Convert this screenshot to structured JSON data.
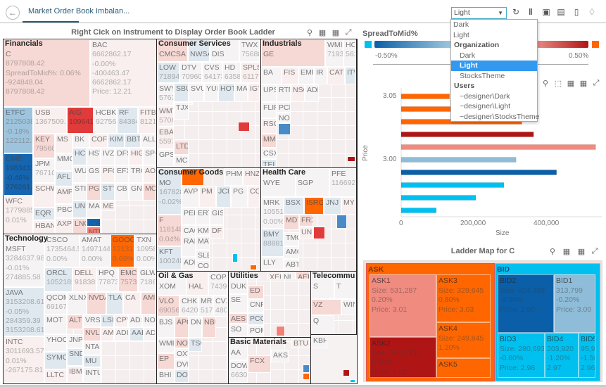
{
  "header": {
    "title": "Market Order Book Imbalan...",
    "theme_value": "Light"
  },
  "theme_menu": {
    "items": [
      {
        "label": "Dark",
        "type": "item"
      },
      {
        "label": "Light",
        "type": "item"
      },
      {
        "label": "Organization",
        "type": "group"
      },
      {
        "label": "Dark",
        "type": "sub"
      },
      {
        "label": "Light",
        "type": "sub",
        "selected": true
      },
      {
        "label": "StocksTheme",
        "type": "sub"
      },
      {
        "label": "Users",
        "type": "group"
      },
      {
        "label": "~designer\\Dark",
        "type": "sub"
      },
      {
        "label": "~designer\\Light",
        "type": "sub"
      },
      {
        "label": "~designer\\StocksTheme",
        "type": "sub"
      }
    ]
  },
  "icons": {
    "header": [
      "refresh-icon",
      "pause-icon",
      "snapshot-icon",
      "pdf-icon",
      "bookmark-icon",
      "bell-icon"
    ]
  },
  "treemap": {
    "title": "Right Cick on Instrument to Display Order Book Ladder",
    "sectors": [
      "Financials",
      "Consumer Services",
      "Industrials",
      "Consumer Goods",
      "Health Care",
      "Technology",
      "Oil & Gas",
      "Utilities",
      "Basic Materials",
      "Telecommuni"
    ],
    "cells": [
      [
        "C",
        "8797808.42",
        "SpreadToMid%: 0.06%",
        "-924848.04",
        "8797808.42"
      ],
      [
        "BAC",
        "6662862.17",
        "-0.00%",
        "-400463.47",
        "6662862.17",
        "Price: 12.21"
      ],
      [
        "ETFC",
        "2125038.",
        "-0.18%",
        "122112.8"
      ],
      [
        "CME",
        "1983431.",
        "-0.46%",
        "276261.0"
      ],
      [
        "WFC",
        "1779885.",
        "0.01%"
      ],
      [
        "USB",
        "1367509.4"
      ],
      [
        "AIG",
        "1096417"
      ],
      [
        "HCBK",
        "927560"
      ],
      [
        "RF",
        "84384"
      ],
      [
        "FITB",
        "81210"
      ],
      [
        "KEY",
        "79560"
      ],
      [
        "JPM",
        "76710"
      ],
      [
        "SCHW"
      ],
      [
        "EQR"
      ],
      [
        "HBAN"
      ],
      [
        "MS"
      ],
      [
        "MMC"
      ],
      [
        "AFL"
      ],
      [
        "AMP"
      ],
      [
        "PBCT"
      ],
      [
        "AXP"
      ],
      [
        "BK"
      ],
      [
        "COF"
      ],
      [
        "KIM"
      ],
      [
        "BBT"
      ],
      [
        "ALL"
      ],
      [
        "HCP"
      ],
      [
        "HST"
      ],
      [
        "IVZ"
      ],
      [
        "DFS"
      ],
      [
        "HIG"
      ],
      [
        "SPG"
      ],
      [
        "WU"
      ],
      [
        "GS"
      ],
      [
        "PFG"
      ],
      [
        "EFX"
      ],
      [
        "TRC"
      ],
      [
        "AO"
      ],
      [
        "STI"
      ],
      [
        "PGR"
      ],
      [
        "STT"
      ],
      [
        "CB"
      ],
      [
        "GN"
      ],
      [
        "MC"
      ],
      [
        "UNM"
      ],
      [
        "MA"
      ],
      [
        "ME"
      ],
      [
        "LNC"
      ],
      [
        "ICE"
      ],
      [
        "NTR"
      ],
      [
        "CMCSA"
      ],
      [
        "NWSA"
      ],
      [
        "DIS"
      ],
      [
        "TWX",
        "75688"
      ],
      [
        "LOW",
        "71894"
      ],
      [
        "DTV",
        "70960"
      ],
      [
        "CVS",
        "64173"
      ],
      [
        "HD",
        "63589"
      ],
      [
        "SPLS",
        "61170"
      ],
      [
        "SWY",
        "5763"
      ],
      [
        "SBU"
      ],
      [
        "SVU"
      ],
      [
        "YUM"
      ],
      [
        "HOT"
      ],
      [
        "MAR"
      ],
      [
        "IGT"
      ],
      [
        "WMT",
        "5706"
      ],
      [
        "TJX"
      ],
      [
        "LUV"
      ],
      [
        "EBAY",
        "5597"
      ],
      [
        "LTD"
      ],
      [
        "GPS"
      ],
      [
        "MCD"
      ],
      [
        ""
      ],
      [
        "GE"
      ],
      [
        "WMI",
        "7193"
      ],
      [
        "HON",
        "562"
      ],
      [
        "BA"
      ],
      [
        "FIS"
      ],
      [
        "EMR"
      ],
      [
        "IR"
      ],
      [
        "CAT"
      ],
      [
        "ITW"
      ],
      [
        "UPS"
      ],
      [
        "RTN"
      ],
      [
        "NSC"
      ],
      [
        "ADP"
      ],
      [
        "FLIR"
      ],
      [
        "PCF"
      ],
      [
        "RSG"
      ],
      [
        "NO"
      ],
      [
        ""
      ],
      [
        "MMI"
      ],
      [
        "CSX"
      ],
      [
        "TEL"
      ],
      [
        ""
      ],
      [
        "MO",
        "167828",
        "-0.02%"
      ],
      [
        ""
      ],
      [
        "PHM"
      ],
      [
        "HNZ"
      ],
      [
        "AVP"
      ],
      [
        "PM"
      ],
      [
        "JCI"
      ],
      [
        "PG"
      ],
      [
        "CCE"
      ],
      [
        "PEP"
      ],
      [
        "ERT"
      ],
      [
        "GIS"
      ],
      [
        "F",
        "118148",
        "0.04%"
      ],
      [
        "CAG"
      ],
      [
        "KMI"
      ],
      [
        "DF"
      ],
      [
        "KFT",
        "100248"
      ],
      [
        "RAI"
      ],
      [
        "MAT"
      ],
      [
        "SLE"
      ],
      [
        "ADM"
      ],
      [
        "COH"
      ],
      [
        ""
      ],
      [
        ""
      ],
      [
        "WYE"
      ],
      [
        "SGP"
      ],
      [
        "PFE",
        "116692"
      ],
      [
        "MRK",
        "10551",
        "0.00%"
      ],
      [
        "BSX"
      ],
      [
        "ISRG"
      ],
      [
        "JNJ"
      ],
      [
        "MYL"
      ],
      [
        "MDT"
      ],
      [
        "FRX"
      ],
      [
        "UNI"
      ],
      [
        ""
      ],
      [
        ""
      ],
      [
        "BMY",
        "88881"
      ],
      [
        "TMO"
      ],
      [
        "AMG"
      ],
      [
        "LLY"
      ],
      [
        "ABT"
      ],
      [
        "MSFT",
        "3284637.98",
        "-0.01%",
        "274885.58"
      ],
      [
        "JAVA",
        "3153208.61",
        "-0.05%",
        "284359.39",
        "3153208.61"
      ],
      [
        "INTC",
        "3011693.57",
        "0.01%",
        "-267175.81"
      ],
      [
        "CSCO",
        "1735464.5",
        "0.00%"
      ],
      [
        "AMAT",
        "1497144.",
        "0.00%"
      ],
      [
        "GOOG",
        "121314",
        "0.69%"
      ],
      [
        "TXN",
        "10958",
        "0.00%"
      ],
      [
        "ORCL",
        "1052185"
      ],
      [
        "DELL",
        "918389"
      ],
      [
        "HPQ",
        "77873"
      ],
      [
        "EMC",
        "75732"
      ],
      [
        "GLW",
        "71861"
      ],
      [
        "QCOM",
        "69167"
      ],
      [
        "XLNX"
      ],
      [
        "NVDA"
      ],
      [
        "TLAB"
      ],
      [
        "CA"
      ],
      [
        "AMD"
      ],
      [
        "MOT"
      ],
      [
        "ALTR"
      ],
      [
        "VRSN"
      ],
      [
        "LSI"
      ],
      [
        "CPW"
      ],
      [
        "ADS"
      ],
      [
        "NOV"
      ],
      [
        "YHOO"
      ],
      [
        "JNPR"
      ],
      [
        "NVLS"
      ],
      [
        "AMT"
      ],
      [
        "ADI"
      ],
      [
        "AAP"
      ],
      [
        "ADB"
      ],
      [
        "SYMC"
      ],
      [
        "SND"
      ],
      [
        "NTAP"
      ],
      [
        "MU"
      ],
      [
        "INTU"
      ],
      [
        "LLTC"
      ],
      [
        "IBM"
      ],
      [
        "XOM"
      ],
      [
        "HAL"
      ],
      [
        "COP",
        "74391"
      ],
      [
        "VLO",
        "69056"
      ],
      [
        "CHK",
        "64205"
      ],
      [
        "MRO",
        "5176"
      ],
      [
        "CVX",
        "4806"
      ],
      [
        "BJS"
      ],
      [
        "APC"
      ],
      [
        "DNR"
      ],
      [
        "NBL"
      ],
      [
        "WMB"
      ],
      [
        "NOV"
      ],
      [
        "TSC"
      ],
      [
        "EP"
      ],
      [
        "OXY"
      ],
      [
        "DVN"
      ],
      [
        "BHI"
      ],
      [
        "DO"
      ],
      [
        "DUK"
      ],
      [
        "XEL"
      ],
      [
        "NI"
      ],
      [
        "AEP"
      ],
      [
        "ED"
      ],
      [
        "SE"
      ],
      [
        "CNP"
      ],
      [
        "AES"
      ],
      [
        "PCG"
      ],
      [
        "SO"
      ],
      [
        "POM"
      ],
      [
        ""
      ],
      [
        "AA"
      ],
      [
        "BTU"
      ],
      [
        "FCX"
      ],
      [
        "AKS"
      ],
      [
        "DOW",
        "66301"
      ],
      [
        ""
      ],
      [
        ""
      ],
      [
        "S"
      ],
      [
        "T"
      ],
      [
        "VZ"
      ],
      [
        "WIN"
      ],
      [
        "Q"
      ],
      [
        "KBH"
      ],
      [
        ""
      ],
      [
        ""
      ]
    ]
  },
  "legend": {
    "title": "SpreadToMid%",
    "min_label": "-0.50%",
    "max_label": "0.50%",
    "low_color": "#00c0f0",
    "high_color": "#ff6600"
  },
  "chart_data": {
    "type": "bar",
    "orientation": "horizontal",
    "categories": [
      "3.05",
      "3.04",
      "3.03",
      "3.02",
      "3.01",
      "3.00",
      "2.99",
      "2.98",
      "2.97",
      "2.96"
    ],
    "values": [
      132000,
      249845,
      329645,
      361773,
      531287,
      313799,
      424359,
      280693,
      203920,
      95900
    ],
    "colors": [
      "#ff6600",
      "#ff6600",
      "#ff6600",
      "#b01515",
      "#f08b80",
      "#8fbcd9",
      "#0a5fa8",
      "#00c0f0",
      "#00c0f0",
      "#00c0f0"
    ],
    "ytick_labels": [
      "3.05",
      "3.00"
    ],
    "xticks": [
      0,
      200000,
      400000
    ],
    "xtick_labels": [
      "0",
      "200,000",
      "400,000"
    ],
    "xlabel": "Size",
    "ylabel": "Price",
    "xlim": [
      0,
      540000
    ]
  },
  "ladder": {
    "title": "Ladder Map for C",
    "ask_label": "ASK",
    "bid_label": "BID",
    "cells": [
      {
        "lines": [
          "ASK1",
          "Size: 531,287",
          "0.20%",
          "Price: 3.01"
        ],
        "color": "#f08b80"
      },
      {
        "lines": [
          "ASK2",
          "Size: 361,773",
          "0.50%",
          "Price: 3.02"
        ],
        "color": "#b01515"
      },
      {
        "lines": [
          "ASK3",
          "Size: 329,645",
          "0.80%",
          "Price: 3.03"
        ],
        "color": "#ff6600"
      },
      {
        "lines": [
          "ASK4",
          "Size: 249,845",
          "1.20%"
        ],
        "color": "#ff6600"
      },
      {
        "lines": [
          "ASK5"
        ],
        "color": "#ff6600"
      },
      {
        "lines": [
          "BID2",
          "Size: 424,359",
          "-0.50%",
          "Price: 2.99"
        ],
        "color": "#0a5fa8"
      },
      {
        "lines": [
          "BID1",
          "313,799",
          "-0.20%",
          "Price: 3.00"
        ],
        "color": "#8fbcd9"
      },
      {
        "lines": [
          "BID3",
          "Size: 280,693",
          "-0.80%",
          "Price: 2.98"
        ],
        "color": "#00c0f0"
      },
      {
        "lines": [
          "BID4",
          "203,920",
          "-1.20%",
          "2.97"
        ],
        "color": "#00c0f0"
      },
      {
        "lines": [
          "BID5",
          "95,9",
          "-1.50%",
          "2.96"
        ],
        "color": "#00c0f0"
      }
    ]
  }
}
